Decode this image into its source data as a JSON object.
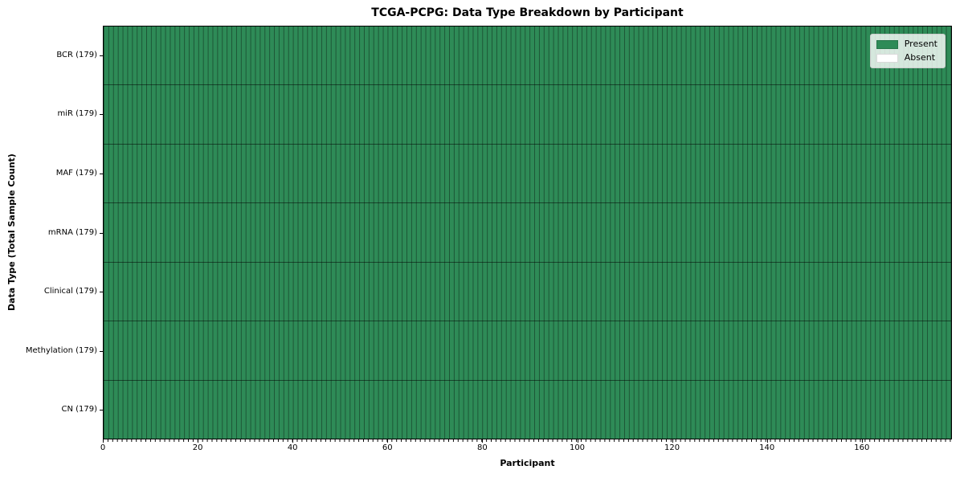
{
  "figure": {
    "title": "TCGA-PCPG: Data Type Breakdown by Participant"
  },
  "chart_data": {
    "type": "heatmap",
    "title": "TCGA-PCPG: Data Type Breakdown by Participant",
    "xlabel": "Participant",
    "ylabel": "Data Type (Total Sample Count)",
    "n_participants": 179,
    "xlim": [
      0,
      179
    ],
    "x_ticks": [
      0,
      20,
      40,
      60,
      80,
      100,
      120,
      140,
      160
    ],
    "categories": [
      "BCR (179)",
      "miR (179)",
      "MAF (179)",
      "mRNA (179)",
      "Clinical (179)",
      "Methylation (179)",
      "CN (179)"
    ],
    "rows": [
      {
        "label": "BCR (179)",
        "data_type": "BCR",
        "total_sample_count": 179,
        "present_count": 179,
        "absent_count": 0
      },
      {
        "label": "miR (179)",
        "data_type": "miR",
        "total_sample_count": 179,
        "present_count": 179,
        "absent_count": 0
      },
      {
        "label": "MAF (179)",
        "data_type": "MAF",
        "total_sample_count": 179,
        "present_count": 179,
        "absent_count": 0
      },
      {
        "label": "mRNA (179)",
        "data_type": "mRNA",
        "total_sample_count": 179,
        "present_count": 179,
        "absent_count": 0
      },
      {
        "label": "Clinical (179)",
        "data_type": "Clinical",
        "total_sample_count": 179,
        "present_count": 179,
        "absent_count": 0
      },
      {
        "label": "Methylation (179)",
        "data_type": "Methylation",
        "total_sample_count": 179,
        "present_count": 179,
        "absent_count": 0
      },
      {
        "label": "CN (179)",
        "data_type": "CN",
        "total_sample_count": 179,
        "present_count": 179,
        "absent_count": 0
      }
    ],
    "legend": {
      "position": "upper right",
      "entries": [
        {
          "label": "Present",
          "color": "#2e8b57"
        },
        {
          "label": "Absent",
          "color": "#ffffff"
        }
      ]
    },
    "colors": {
      "present": "#2e8b57",
      "absent": "#ffffff",
      "cell_divider": "rgba(0,0,0,0.38)",
      "row_divider": "rgba(0,0,0,0.5)",
      "axis": "#000000"
    },
    "grid": "per-participant vertical dividers, per-data-type horizontal dividers"
  }
}
